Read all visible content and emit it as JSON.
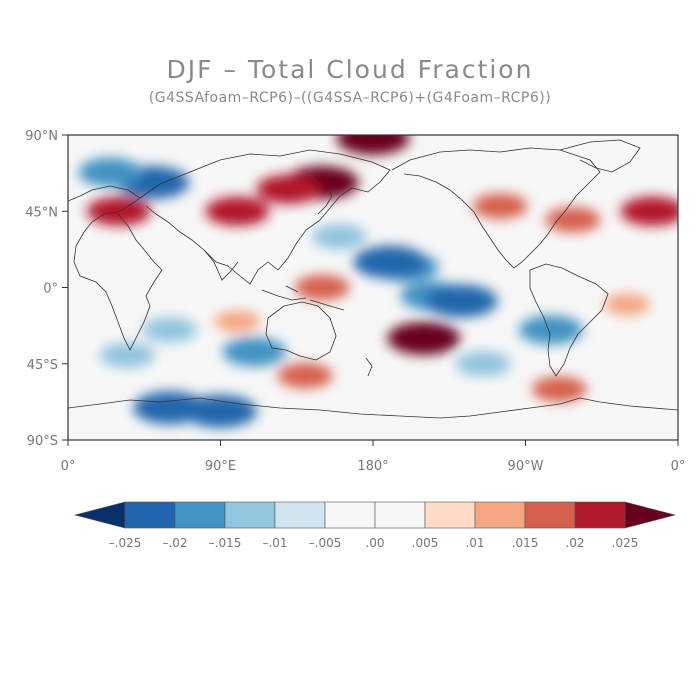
{
  "title": "DJF – Total Cloud Fraction",
  "subtitle": "(G4SSAfoam–RCP6)–((G4SSA–RCP6)+(G4Foam–RCP6))",
  "map": {
    "projection": "cylindrical equidistant",
    "lon_range": [
      0,
      360
    ],
    "lat_range": [
      -90,
      90
    ],
    "lat_ticks": [
      {
        "value": 90,
        "label": "90°N"
      },
      {
        "value": 45,
        "label": "45°N"
      },
      {
        "value": 0,
        "label": "0°"
      },
      {
        "value": -45,
        "label": "45°S"
      },
      {
        "value": -90,
        "label": "90°S"
      }
    ],
    "lon_ticks": [
      {
        "value": 0,
        "label": "0°"
      },
      {
        "value": 90,
        "label": "90°E"
      },
      {
        "value": 180,
        "label": "180°"
      },
      {
        "value": 270,
        "label": "90°W"
      },
      {
        "value": 360,
        "label": "0°"
      }
    ],
    "field_features": [
      {
        "lon": 50,
        "lat": 62,
        "value": -0.025
      },
      {
        "lon": 25,
        "lat": 68,
        "value": -0.02
      },
      {
        "lon": 150,
        "lat": 62,
        "value": 0.025
      },
      {
        "lon": 130,
        "lat": 58,
        "value": 0.02
      },
      {
        "lon": 100,
        "lat": 45,
        "value": 0.02
      },
      {
        "lon": 255,
        "lat": 48,
        "value": 0.015
      },
      {
        "lon": 298,
        "lat": 40,
        "value": 0.015
      },
      {
        "lon": 345,
        "lat": 45,
        "value": 0.02
      },
      {
        "lon": 200,
        "lat": 12,
        "value": -0.02
      },
      {
        "lon": 190,
        "lat": 15,
        "value": -0.025
      },
      {
        "lon": 215,
        "lat": -5,
        "value": -0.02
      },
      {
        "lon": 232,
        "lat": -8,
        "value": -0.025
      },
      {
        "lon": 150,
        "lat": 0,
        "value": 0.015
      },
      {
        "lon": 210,
        "lat": -30,
        "value": 0.025
      },
      {
        "lon": 60,
        "lat": -25,
        "value": -0.015
      },
      {
        "lon": 110,
        "lat": -38,
        "value": -0.02
      },
      {
        "lon": 285,
        "lat": -25,
        "value": -0.02
      },
      {
        "lon": 35,
        "lat": -40,
        "value": -0.015
      },
      {
        "lon": 60,
        "lat": -71,
        "value": -0.025
      },
      {
        "lon": 90,
        "lat": -73,
        "value": -0.025
      },
      {
        "lon": 140,
        "lat": -52,
        "value": 0.015
      },
      {
        "lon": 290,
        "lat": -60,
        "value": 0.015
      },
      {
        "lon": 180,
        "lat": 88,
        "value": 0.025
      },
      {
        "lon": 100,
        "lat": -20,
        "value": 0.01
      },
      {
        "lon": 330,
        "lat": -10,
        "value": 0.01
      },
      {
        "lon": 245,
        "lat": -45,
        "value": -0.015
      },
      {
        "lon": 30,
        "lat": 45,
        "value": 0.02
      },
      {
        "lon": 160,
        "lat": 30,
        "value": -0.015
      }
    ]
  },
  "colorbar": {
    "levels": [
      -0.025,
      -0.02,
      -0.015,
      -0.01,
      -0.005,
      0.0,
      0.005,
      0.01,
      0.015,
      0.02,
      0.025
    ],
    "labels": [
      "–.025",
      "–.02",
      "–.015",
      "–.01",
      "–.005",
      ".00",
      ".005",
      ".01",
      ".015",
      ".02",
      ".025"
    ],
    "colors": [
      "#08306b",
      "#2166ac",
      "#4393c3",
      "#92c5de",
      "#d1e5f0",
      "#f7f7f7",
      "#f7f7f7",
      "#fddbc7",
      "#f4a582",
      "#d6604d",
      "#b2182b",
      "#67001f"
    ]
  }
}
